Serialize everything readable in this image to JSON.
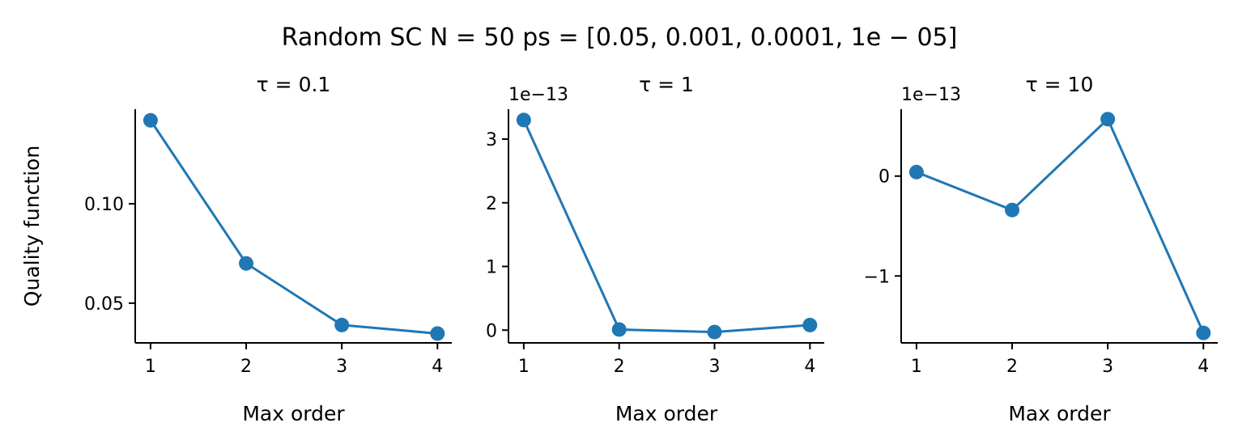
{
  "title": "Random SC N = 50 ps = [0.05, 0.001, 0.0001, 1e − 05]",
  "chart_data": [
    {
      "type": "line",
      "title": "τ = 0.1",
      "xlabel": "Max order",
      "ylabel": "Quality function",
      "color": "#1f77b4",
      "x": [
        1,
        2,
        3,
        4
      ],
      "values": [
        0.142,
        0.07,
        0.039,
        0.0347
      ],
      "xlim": [
        0.84,
        4.15
      ],
      "xticks": [
        1,
        2,
        3,
        4
      ],
      "ylim": [
        0.03,
        0.1476
      ],
      "yticks": [
        0.05,
        {
          "value": 0.1,
          "label": "0.10"
        }
      ]
    },
    {
      "type": "line",
      "title": "τ = 1",
      "xlabel": "Max order",
      "offset_label": "1e−13",
      "color": "#1f77b4",
      "x": [
        1,
        2,
        3,
        4
      ],
      "values": [
        3.3e-13,
        1e-15,
        -3e-15,
        8e-15
      ],
      "xlim": [
        0.84,
        4.15
      ],
      "xticks": [
        1,
        2,
        3,
        4
      ],
      "ylim": [
        -2e-14,
        3.47e-13
      ],
      "yticks": [
        0,
        {
          "value": 1e-13,
          "label": "1"
        },
        {
          "value": 2e-13,
          "label": "2"
        },
        {
          "value": 3e-13,
          "label": "3"
        }
      ]
    },
    {
      "type": "line",
      "title": "τ = 10",
      "xlabel": "Max order",
      "offset_label": "1e−13",
      "color": "#1f77b4",
      "x": [
        1,
        2,
        3,
        4
      ],
      "values": [
        4e-15,
        -3.4e-14,
        5.7e-14,
        -1.57e-13
      ],
      "xlim": [
        0.84,
        4.15
      ],
      "xticks": [
        1,
        2,
        3,
        4
      ],
      "ylim": [
        -1.67e-13,
        6.7e-14
      ],
      "yticks": [
        {
          "value": -1e-13,
          "label": "−1"
        },
        0
      ]
    }
  ]
}
